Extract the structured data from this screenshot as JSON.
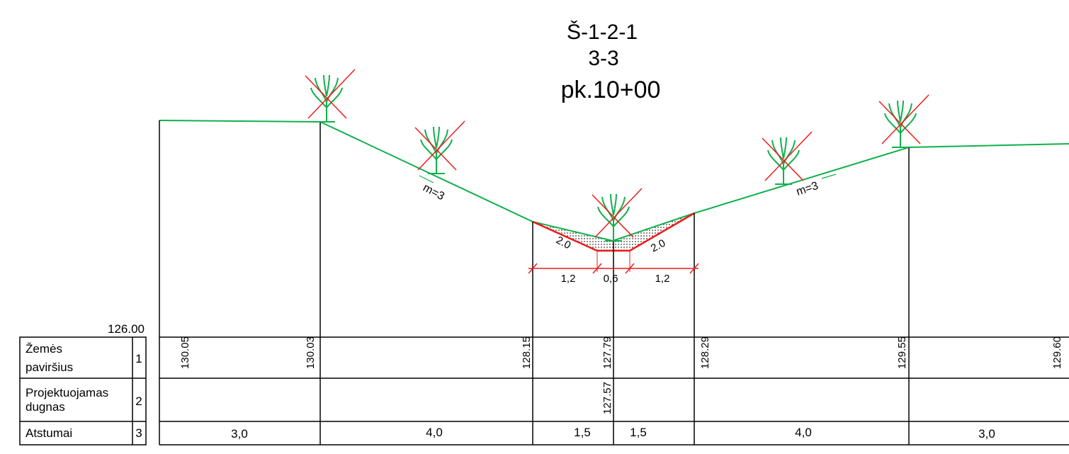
{
  "colors": {
    "ground": "#11b04c",
    "design": "#ee1b1b",
    "frame": "#000000"
  },
  "header": {
    "code": "Š-1-2-1",
    "section": "3-3",
    "picket": "pk.10+00"
  },
  "datum": "126.00",
  "slope_labels": [
    "m=3",
    "m=3"
  ],
  "channel": {
    "inner_slope_labels": [
      "2.0",
      "2.0"
    ],
    "dimensions": [
      "1,2",
      "0,6",
      "1,2"
    ]
  },
  "icons": {
    "removed_tree": "tree-crossed-out-icon"
  },
  "table": {
    "rows": [
      {
        "label_line1": "Žemės",
        "label_line2": "paviršius",
        "number": "1"
      },
      {
        "label_line1": "Projektuojamas",
        "label_line2": "dugnas",
        "number": "2"
      },
      {
        "label_line1": "Atstumai",
        "label_line2": "",
        "number": "3"
      }
    ],
    "ground_elevations": [
      "130.05",
      "130.03",
      "128.15",
      "127.79",
      "128.29",
      "129.55",
      "129.60"
    ],
    "design_elevations": [
      "127.57"
    ],
    "distances": [
      "3,0",
      "4,0",
      "1,5",
      "1,5",
      "4,0",
      "3,0"
    ]
  }
}
